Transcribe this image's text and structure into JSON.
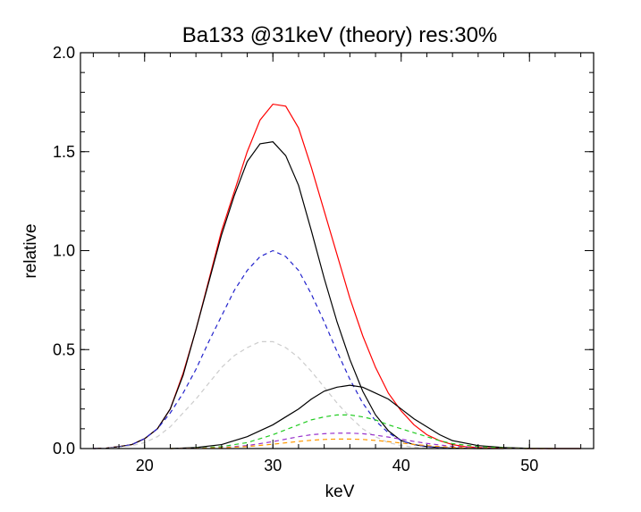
{
  "chart_data": {
    "type": "line",
    "title": "Ba133 @31keV (theory) res:30%",
    "xlabel": "keV",
    "ylabel": "relative",
    "xlim": [
      15,
      55
    ],
    "ylim": [
      0,
      2.0
    ],
    "x_ticks": [
      {
        "value": 20,
        "label": "20"
      },
      {
        "value": 30,
        "label": "30"
      },
      {
        "value": 40,
        "label": "40"
      },
      {
        "value": 50,
        "label": "50"
      }
    ],
    "y_ticks": [
      {
        "value": 0.0,
        "label": "0.0"
      },
      {
        "value": 0.5,
        "label": "0.5"
      },
      {
        "value": 1.0,
        "label": "1.0"
      },
      {
        "value": 1.5,
        "label": "1.5"
      },
      {
        "value": 2.0,
        "label": "2.0"
      }
    ],
    "x_minor_step": 2,
    "y_minor_step": 0.1,
    "grid": false,
    "legend": "none",
    "series": [
      {
        "color": "#ff0000",
        "dash": "solid",
        "x": [
          16,
          17,
          18,
          19,
          20,
          21,
          22,
          23,
          24,
          25,
          26,
          27,
          28,
          29,
          30,
          31,
          32,
          33,
          34,
          35,
          36,
          37,
          38,
          39,
          40,
          41,
          42,
          43,
          44,
          45,
          46,
          47,
          48,
          49,
          50,
          51,
          52,
          53,
          54
        ],
        "y": [
          0.0,
          0.002,
          0.01,
          0.02,
          0.05,
          0.1,
          0.2,
          0.38,
          0.6,
          0.85,
          1.1,
          1.3,
          1.5,
          1.66,
          1.74,
          1.73,
          1.62,
          1.42,
          1.2,
          0.98,
          0.76,
          0.57,
          0.41,
          0.28,
          0.19,
          0.12,
          0.07,
          0.04,
          0.02,
          0.01,
          0.005,
          0.003,
          0.002,
          0.001,
          0.0,
          0.0,
          0.0,
          0.0,
          0.0
        ]
      },
      {
        "color": "#000000",
        "dash": "solid",
        "x": [
          16,
          17,
          18,
          19,
          20,
          21,
          22,
          23,
          24,
          25,
          26,
          27,
          28,
          29,
          30,
          31,
          32,
          33,
          34,
          35,
          36,
          37,
          38,
          39,
          40,
          41,
          42,
          43,
          44,
          45,
          46,
          47,
          48
        ],
        "y": [
          0.0,
          0.002,
          0.01,
          0.02,
          0.05,
          0.1,
          0.2,
          0.37,
          0.6,
          0.84,
          1.08,
          1.28,
          1.45,
          1.54,
          1.55,
          1.48,
          1.33,
          1.1,
          0.86,
          0.64,
          0.45,
          0.29,
          0.17,
          0.09,
          0.04,
          0.02,
          0.01,
          0.005,
          0.002,
          0.001,
          0.0,
          0.0,
          0.0
        ]
      },
      {
        "color": "#2222cc",
        "dash": "dashed",
        "x": [
          16,
          17,
          18,
          19,
          20,
          21,
          22,
          23,
          24,
          25,
          26,
          27,
          28,
          29,
          30,
          31,
          32,
          33,
          34,
          35,
          36,
          37,
          38,
          39,
          40,
          41,
          42,
          43,
          44
        ],
        "y": [
          0.0,
          0.002,
          0.008,
          0.02,
          0.05,
          0.1,
          0.18,
          0.28,
          0.4,
          0.54,
          0.67,
          0.8,
          0.9,
          0.97,
          1.0,
          0.97,
          0.9,
          0.78,
          0.64,
          0.49,
          0.35,
          0.23,
          0.14,
          0.08,
          0.04,
          0.02,
          0.01,
          0.005,
          0.002
        ]
      },
      {
        "color": "#cccccc",
        "dash": "dashed",
        "x": [
          16,
          17,
          18,
          19,
          20,
          21,
          22,
          23,
          24,
          25,
          26,
          27,
          28,
          29,
          30,
          31,
          32,
          33,
          34,
          35,
          36,
          37,
          38,
          39,
          40,
          41,
          42,
          43,
          44
        ],
        "y": [
          0.0,
          0.002,
          0.006,
          0.015,
          0.03,
          0.06,
          0.11,
          0.18,
          0.25,
          0.33,
          0.41,
          0.47,
          0.51,
          0.54,
          0.54,
          0.51,
          0.46,
          0.39,
          0.31,
          0.23,
          0.16,
          0.1,
          0.06,
          0.03,
          0.015,
          0.007,
          0.003,
          0.001,
          0.0
        ]
      },
      {
        "color": "#000000",
        "dash": "solid",
        "x": [
          22,
          24,
          26,
          28,
          30,
          31,
          32,
          33,
          34,
          35,
          36,
          37,
          38,
          39,
          40,
          41,
          42,
          43,
          44,
          46,
          48,
          50,
          52,
          54
        ],
        "y": [
          0.0,
          0.005,
          0.02,
          0.06,
          0.12,
          0.16,
          0.2,
          0.25,
          0.29,
          0.31,
          0.32,
          0.31,
          0.28,
          0.25,
          0.2,
          0.15,
          0.11,
          0.07,
          0.04,
          0.015,
          0.005,
          0.001,
          0.0,
          0.0
        ]
      },
      {
        "color": "#22cc22",
        "dash": "dashed",
        "x": [
          22,
          24,
          26,
          28,
          30,
          32,
          33,
          34,
          35,
          36,
          37,
          38,
          39,
          40,
          41,
          42,
          43,
          44,
          46,
          48,
          50,
          52
        ],
        "y": [
          0.0,
          0.003,
          0.01,
          0.03,
          0.07,
          0.12,
          0.145,
          0.16,
          0.17,
          0.17,
          0.16,
          0.145,
          0.12,
          0.1,
          0.08,
          0.06,
          0.04,
          0.025,
          0.01,
          0.003,
          0.001,
          0.0
        ]
      },
      {
        "color": "#9933cc",
        "dash": "dashed",
        "x": [
          22,
          24,
          26,
          28,
          30,
          32,
          33,
          34,
          35,
          36,
          37,
          38,
          39,
          40,
          41,
          42,
          43,
          44,
          46,
          48,
          50,
          52
        ],
        "y": [
          0.0,
          0.002,
          0.005,
          0.015,
          0.035,
          0.06,
          0.07,
          0.075,
          0.078,
          0.078,
          0.075,
          0.068,
          0.058,
          0.047,
          0.036,
          0.026,
          0.018,
          0.011,
          0.004,
          0.001,
          0.0,
          0.0
        ]
      },
      {
        "color": "#ff9900",
        "dash": "dashed",
        "x": [
          22,
          24,
          26,
          28,
          30,
          32,
          33,
          34,
          35,
          36,
          37,
          38,
          39,
          40,
          41,
          42,
          43,
          44,
          46,
          48,
          50,
          52
        ],
        "y": [
          0.0,
          0.001,
          0.004,
          0.01,
          0.022,
          0.036,
          0.042,
          0.046,
          0.048,
          0.048,
          0.046,
          0.041,
          0.035,
          0.028,
          0.021,
          0.015,
          0.01,
          0.006,
          0.002,
          0.001,
          0.0,
          0.0
        ]
      }
    ]
  }
}
